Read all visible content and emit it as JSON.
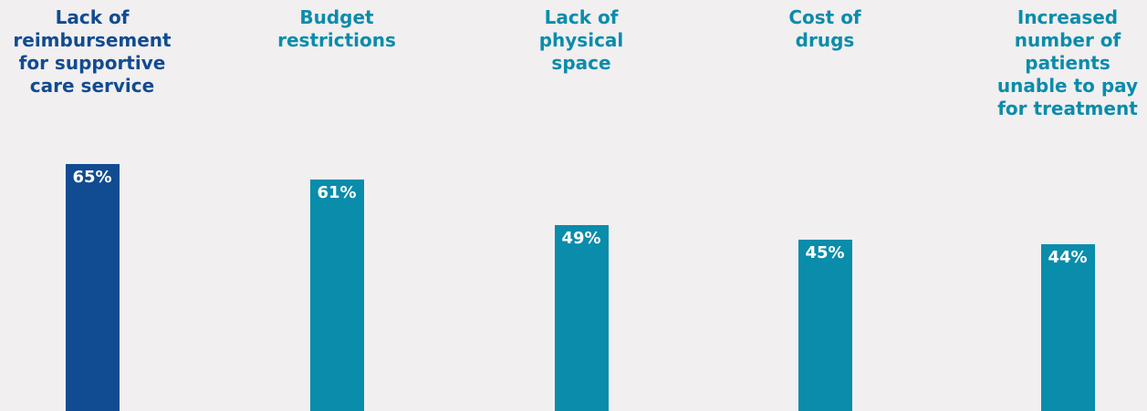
{
  "chart_data": {
    "type": "bar",
    "categories": [
      "Lack of\nreimbursement\nfor supportive\ncare service",
      "Budget\nrestrictions",
      "Lack of\nphysical\nspace",
      "Cost of\ndrugs",
      "Increased\nnumber of\npatients\nunable to pay\nfor treatment"
    ],
    "values": [
      65,
      61,
      49,
      45,
      44
    ],
    "value_labels": [
      "65%",
      "61%",
      "49%",
      "45%",
      "44%"
    ],
    "unit": "%",
    "colors": [
      "#114b91",
      "#0a8cab",
      "#0a8cab",
      "#0a8cab",
      "#0a8cab"
    ],
    "label_colors": [
      "#114b91",
      "#0a8cab",
      "#0a8cab",
      "#0a8cab",
      "#0a8cab"
    ],
    "ylim": [
      0,
      100
    ],
    "grid": false,
    "legend": "none"
  }
}
